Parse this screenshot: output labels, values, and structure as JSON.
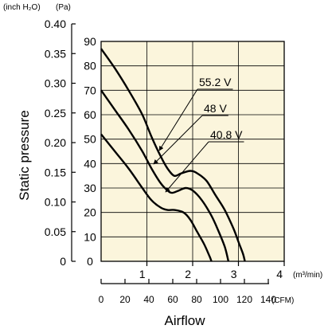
{
  "chart_data": {
    "type": "line",
    "xlabel": "Airflow",
    "ylabel": "Static pressure",
    "units": {
      "y_inch": "(inch H₂O)",
      "y_pa": "(Pa)",
      "x_m3": "(m³/min)",
      "x_cfm": "(CFM)"
    },
    "y_pa_ticks": [
      0,
      10,
      20,
      30,
      40,
      50,
      60,
      70,
      80,
      90
    ],
    "y_inch_ticks": [
      "0",
      "0.05",
      "0.10",
      "0.15",
      "0.20",
      "0.25",
      "0.30",
      "0.35",
      "0.40"
    ],
    "x_m3_ticks": [
      "1",
      "2",
      "3",
      "4"
    ],
    "x_cfm_ticks": [
      "0",
      "20",
      "40",
      "60",
      "80",
      "100",
      "120",
      "140"
    ],
    "xlim": [
      0,
      4
    ],
    "ylim_pa": [
      0,
      90
    ],
    "grid": true,
    "series": [
      {
        "name": "55.2 V",
        "points": [
          [
            0,
            87
          ],
          [
            0.3,
            79
          ],
          [
            0.6,
            70
          ],
          [
            0.9,
            60
          ],
          [
            1.1,
            51
          ],
          [
            1.3,
            43
          ],
          [
            1.45,
            38
          ],
          [
            1.6,
            35
          ],
          [
            1.75,
            36
          ],
          [
            1.95,
            37
          ],
          [
            2.1,
            36
          ],
          [
            2.3,
            33
          ],
          [
            2.5,
            27
          ],
          [
            2.7,
            21
          ],
          [
            2.9,
            13
          ],
          [
            3.0,
            8
          ],
          [
            3.1,
            3
          ],
          [
            3.14,
            0
          ]
        ]
      },
      {
        "name": "48 V",
        "points": [
          [
            0,
            70
          ],
          [
            0.3,
            62
          ],
          [
            0.6,
            54
          ],
          [
            0.9,
            45
          ],
          [
            1.1,
            38
          ],
          [
            1.3,
            32
          ],
          [
            1.45,
            29
          ],
          [
            1.55,
            28
          ],
          [
            1.7,
            29
          ],
          [
            1.85,
            30
          ],
          [
            2.0,
            29
          ],
          [
            2.2,
            25
          ],
          [
            2.4,
            19
          ],
          [
            2.55,
            13
          ],
          [
            2.7,
            6
          ],
          [
            2.78,
            0
          ]
        ]
      },
      {
        "name": "40.8 V",
        "points": [
          [
            0,
            52
          ],
          [
            0.3,
            45
          ],
          [
            0.6,
            38
          ],
          [
            0.9,
            30
          ],
          [
            1.1,
            25
          ],
          [
            1.3,
            22
          ],
          [
            1.45,
            21
          ],
          [
            1.6,
            21
          ],
          [
            1.8,
            20
          ],
          [
            1.95,
            17
          ],
          [
            2.1,
            12
          ],
          [
            2.25,
            7
          ],
          [
            2.37,
            2
          ],
          [
            2.41,
            0
          ]
        ]
      }
    ]
  }
}
